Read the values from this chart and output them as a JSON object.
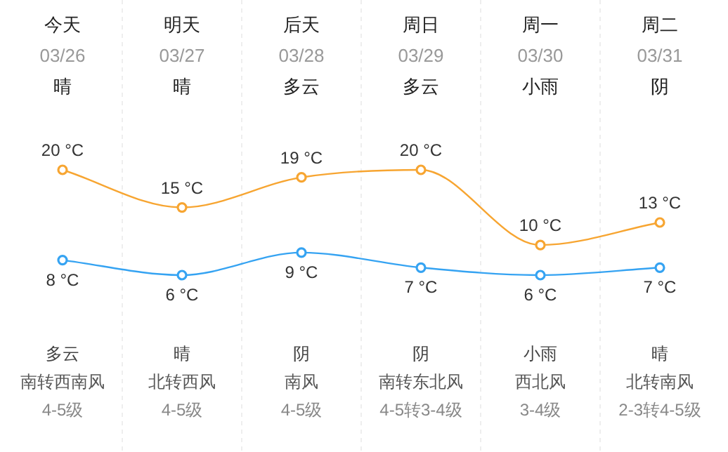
{
  "chart_data": {
    "type": "line",
    "categories": [
      "今天",
      "明天",
      "后天",
      "周日",
      "周一",
      "周二"
    ],
    "series": [
      {
        "color": "#f7a531",
        "values": [
          20,
          15,
          19,
          20,
          10,
          13
        ],
        "value_labels": [
          "20 °C",
          "15 °C",
          "19 °C",
          "20 °C",
          "10 °C",
          "13 °C"
        ]
      },
      {
        "color": "#35a3f2",
        "values": [
          8,
          6,
          9,
          7,
          6,
          7
        ],
        "value_labels": [
          "8 °C",
          "6 °C",
          "9 °C",
          "7 °C",
          "6 °C",
          "7 °C"
        ]
      }
    ],
    "marker": "circle",
    "grid": "x",
    "annotations": [
      "03/26",
      "03/27",
      "03/28",
      "03/29",
      "03/30",
      "03/31",
      "晴",
      "晴",
      "多云",
      "多云",
      "小雨",
      "阴",
      "多云",
      "晴",
      "阴",
      "阴",
      "小雨",
      "晴",
      "南转西南风",
      "北转西风",
      "南风",
      "南转东北风",
      "西北风",
      "北转南风",
      "4-5级",
      "4-5级",
      "4-5级",
      "4-5转3-4级",
      "3-4级",
      "2-3转4-5级"
    ]
  }
}
